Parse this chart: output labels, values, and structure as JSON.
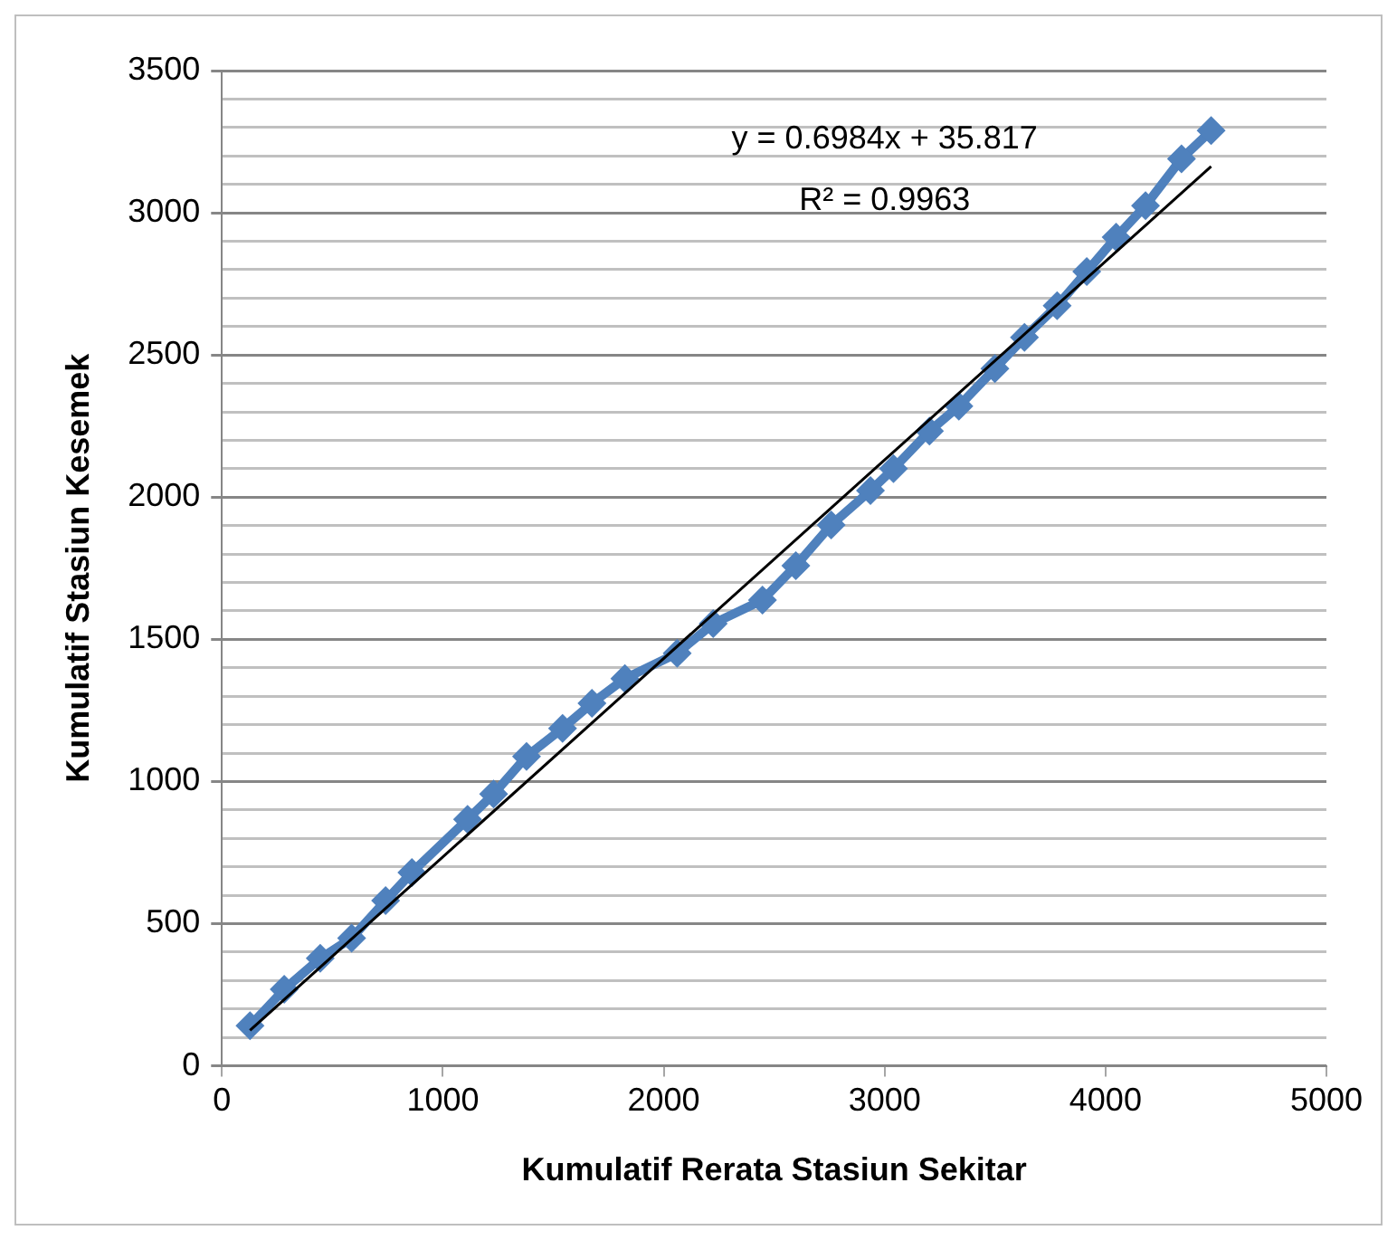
{
  "chart_data": {
    "type": "line",
    "xlabel": "Kumulatif Rerata Stasiun Sekitar",
    "ylabel": "Kumulatif Stasiun Kesemek",
    "xlim": [
      0,
      5000
    ],
    "xticks": [
      0,
      1000,
      2000,
      3000,
      4000,
      5000
    ],
    "ylim": [
      0,
      3500
    ],
    "yticks": [
      0,
      {
        "value": 100,
        "label": null
      },
      {
        "value": 200,
        "label": null
      },
      {
        "value": 300,
        "label": null
      },
      {
        "value": 400,
        "label": null
      },
      500,
      {
        "value": 600,
        "label": null
      },
      {
        "value": 700,
        "label": null
      },
      {
        "value": 800,
        "label": null
      },
      {
        "value": 900,
        "label": null
      },
      1000,
      {
        "value": 1100,
        "label": null
      },
      {
        "value": 1200,
        "label": null
      },
      {
        "value": 1300,
        "label": null
      },
      {
        "value": 1400,
        "label": null
      },
      1500,
      {
        "value": 1600,
        "label": null
      },
      {
        "value": 1700,
        "label": null
      },
      {
        "value": 1800,
        "label": null
      },
      {
        "value": 1900,
        "label": null
      },
      2000,
      {
        "value": 2100,
        "label": null
      },
      {
        "value": 2200,
        "label": null
      },
      {
        "value": 2300,
        "label": null
      },
      {
        "value": 2400,
        "label": null
      },
      2500,
      {
        "value": 2600,
        "label": null
      },
      {
        "value": 2700,
        "label": null
      },
      {
        "value": 2800,
        "label": null
      },
      {
        "value": 2900,
        "label": null
      },
      3000,
      {
        "value": 3100,
        "label": null
      },
      {
        "value": 3200,
        "label": null
      },
      {
        "value": 3300,
        "label": null
      },
      {
        "value": 3400,
        "label": null
      },
      3500
    ],
    "grid": "y",
    "legend": false,
    "annotations": [
      "y = 0.6984x + 35.817",
      "R² = 0.9963"
    ],
    "series": [
      {
        "color": "#4f81bd",
        "marker": "diamond",
        "x": [
          127,
          282,
          445,
          587,
          741,
          860,
          1112,
          1230,
          1379,
          1542,
          1675,
          1824,
          2061,
          2224,
          2447,
          2598,
          2758,
          2936,
          3040,
          3203,
          3336,
          3499,
          3633,
          3781,
          3915,
          4048,
          4181,
          4344,
          4478
        ],
        "values": [
          141,
          269,
          378,
          449,
          581,
          680,
          867,
          956,
          1088,
          1187,
          1275,
          1362,
          1451,
          1555,
          1638,
          1759,
          1902,
          2023,
          2100,
          2232,
          2320,
          2452,
          2562,
          2673,
          2793,
          2914,
          3025,
          3190,
          3289
        ]
      },
      {
        "type": "line",
        "color": "#000000",
        "marker": "none",
        "x": [
          127,
          4478
        ],
        "values": [
          125,
          3163
        ]
      }
    ]
  }
}
